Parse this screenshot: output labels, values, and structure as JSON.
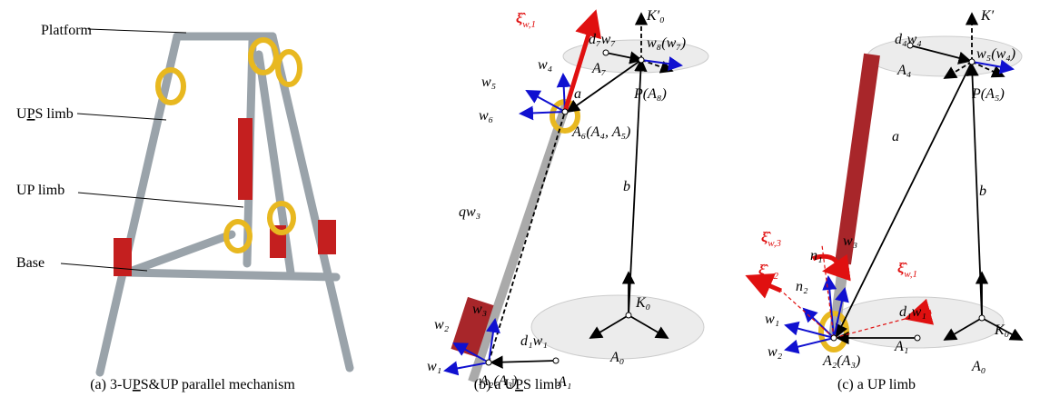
{
  "panel_a": {
    "platform": "Platform",
    "ups_limb": [
      "U",
      "P",
      "S limb"
    ],
    "up_limb": "UP limb",
    "base": "Base",
    "caption": [
      "(a) 3-U",
      "P",
      "S&UP parallel mechanism"
    ]
  },
  "panel_b": {
    "caption": [
      "(b) a U",
      "P",
      "S limb"
    ],
    "labels": [
      {
        "base": "ξ̂",
        "sub": "w,1"
      },
      "K′₀",
      "d₇w₇",
      "w₈(w₇)",
      "A₇",
      "w₄",
      "w₅",
      "a",
      "w₆",
      "P(A₈)",
      "A₆(A₄, A₅)",
      "qw₃",
      "b",
      "w₃",
      "w₂",
      "w₁",
      "d₁w₁",
      "A₂(A₃)",
      "A₁",
      "K₀",
      "A₀"
    ]
  },
  "panel_c": {
    "caption": "(c) a UP limb",
    "labels": [
      "K′",
      "d₄w₄",
      "w₅(w₄)",
      "A₄",
      "P(A₅)",
      "a",
      "b",
      {
        "base": "ξ̂",
        "sub": "w,3"
      },
      {
        "base": "ξ̂",
        "sub": "w,2"
      },
      "w₃",
      "n₁",
      "n₂",
      "w₁",
      "w₂",
      "A₂(A₃)",
      {
        "base": "ξ̂",
        "sub": "w,1"
      },
      "d₁w₁",
      "A₁",
      "K₀",
      "A₀"
    ]
  }
}
